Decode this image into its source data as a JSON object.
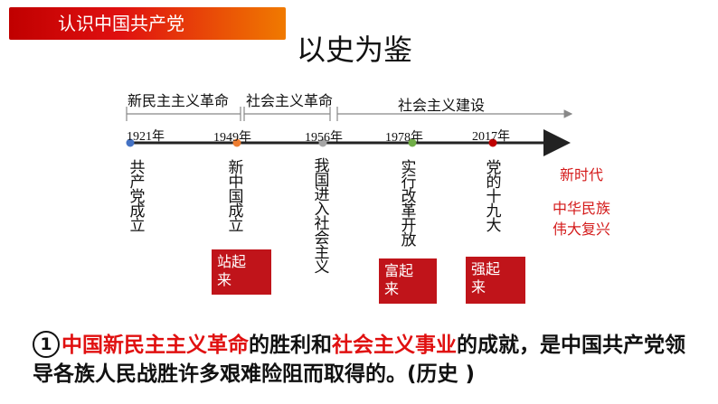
{
  "header": {
    "title": "认识中国共产党"
  },
  "slide_title": "以史为鉴",
  "periods": [
    {
      "label": "新民主主义革命"
    },
    {
      "label": "社会主义革命"
    },
    {
      "label": "社会主义建设"
    }
  ],
  "milestones": [
    {
      "year": "1921年",
      "event": "共产党成立",
      "dot_color": "#4472c4"
    },
    {
      "year": "1949年",
      "event": "新中国成立",
      "dot_color": "#ed7d31"
    },
    {
      "year": "1956年",
      "event": "我国进入社会主义",
      "dot_color": "#a5a5a5"
    },
    {
      "year": "1978年",
      "event": "实行改革开放",
      "dot_color": "#70ad47"
    },
    {
      "year": "2017年",
      "event": "党的十九大",
      "dot_color": "#c00000"
    }
  ],
  "new_era": {
    "line1": "新时代",
    "line2": "中华民族",
    "line3": "伟大复兴"
  },
  "stages": [
    {
      "label": "站起来"
    },
    {
      "label": "富起来"
    },
    {
      "label": "强起来"
    }
  ],
  "conclusion": {
    "number": "1",
    "hl1": "中国新民主主义革命",
    "t1": "的胜利和",
    "hl2": "社会主义事业",
    "t2": "的成就，是中国共产党领导各族人民战胜许多艰难险阻而取得的。(历史 )"
  },
  "colors": {
    "accent_red": "#c00000",
    "highlight": "#e01010",
    "axis": "#222222"
  }
}
